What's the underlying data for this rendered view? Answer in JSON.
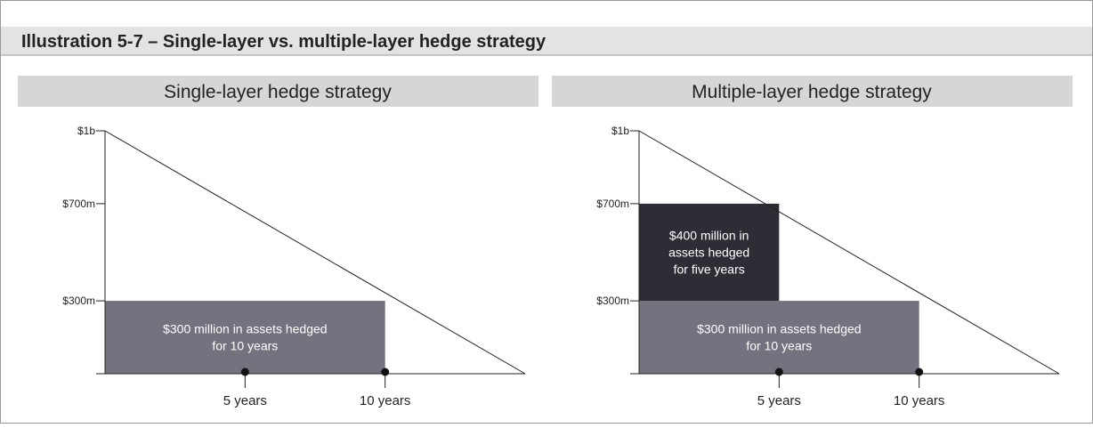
{
  "title": "Illustration 5-7 – Single-layer vs. multiple-layer hedge strategy",
  "chart_data": [
    {
      "type": "hedge",
      "title": "Single-layer hedge strategy",
      "ylim": [
        0,
        1000
      ],
      "yticks": [
        {
          "value": 1000,
          "label": "$1b"
        },
        {
          "value": 700,
          "label": "$700m"
        },
        {
          "value": 300,
          "label": "$300m"
        }
      ],
      "xlim": [
        0,
        15
      ],
      "xticks": [
        {
          "value": 5,
          "label": "5 years"
        },
        {
          "value": 10,
          "label": "10 years"
        }
      ],
      "layers": [
        {
          "label": [
            "$300 million in assets hedged",
            "for 10 years"
          ],
          "value": 300,
          "years": 10,
          "color": "#73737f"
        }
      ]
    },
    {
      "type": "hedge",
      "title": "Multiple-layer hedge strategy",
      "ylim": [
        0,
        1000
      ],
      "yticks": [
        {
          "value": 1000,
          "label": "$1b"
        },
        {
          "value": 700,
          "label": "$700m"
        },
        {
          "value": 300,
          "label": "$300m"
        }
      ],
      "xlim": [
        0,
        15
      ],
      "xticks": [
        {
          "value": 5,
          "label": "5 years"
        },
        {
          "value": 10,
          "label": "10 years"
        }
      ],
      "layers": [
        {
          "label": [
            "$300 million in assets hedged",
            "for 10 years"
          ],
          "value": 300,
          "years": 10,
          "color": "#73737f"
        },
        {
          "label": [
            "$400 million in",
            "assets hedged",
            "for five years"
          ],
          "value": 400,
          "years": 5,
          "color": "#2d2d35"
        }
      ]
    }
  ]
}
